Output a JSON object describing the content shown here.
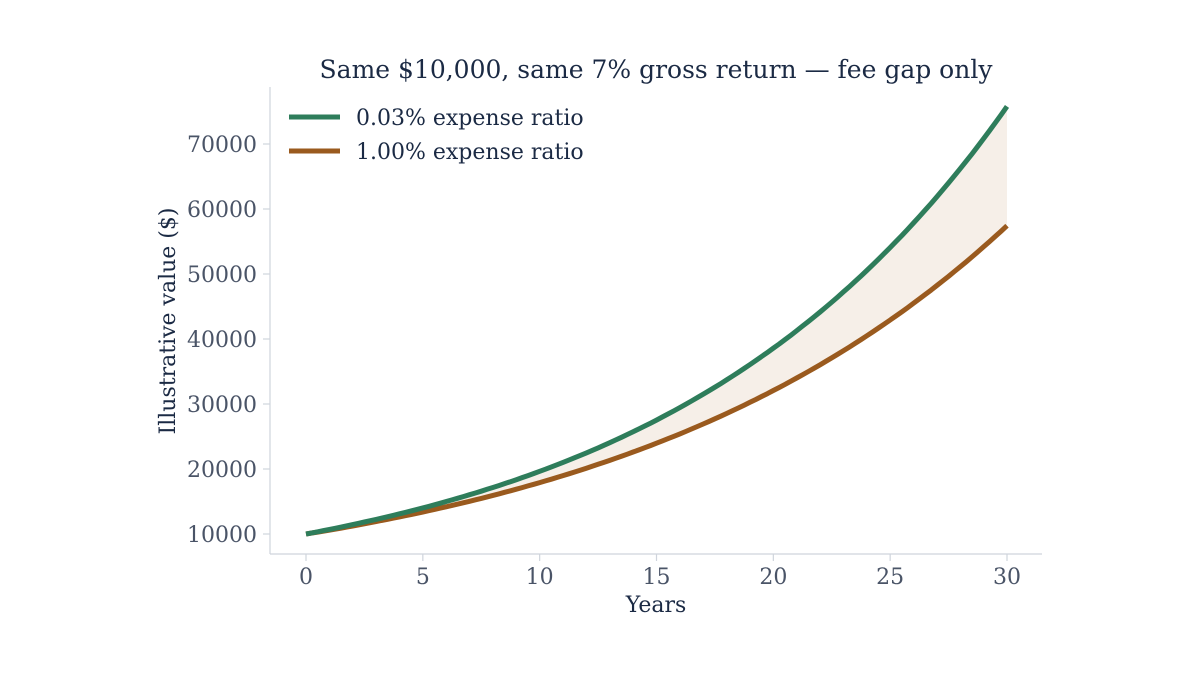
{
  "chart_data": {
    "type": "line",
    "title": "Same $10,000, same 7% gross return — fee gap only",
    "xlabel": "Years",
    "ylabel": "Illustrative value ($)",
    "xlim": [
      0,
      30
    ],
    "ylim": [
      10000,
      75000
    ],
    "x_ticks": [
      "0",
      "5",
      "10",
      "15",
      "20",
      "25",
      "30"
    ],
    "y_ticks": [
      "10000",
      "20000",
      "30000",
      "40000",
      "50000",
      "60000",
      "70000"
    ],
    "grid": false,
    "legend_position": "top-left",
    "fill_between": {
      "color": "#f6efe8",
      "between": [
        0,
        1
      ]
    },
    "x": [
      0,
      5,
      10,
      15,
      20,
      25,
      30
    ],
    "series": [
      {
        "name": "0.03% expense ratio",
        "color": "#2e7d5b",
        "values": [
          10000,
          14015,
          19642,
          27528,
          38581,
          54072,
          75782
        ]
      },
      {
        "name": "1.00% expense ratio",
        "color": "#9a5a1e",
        "values": [
          10000,
          13382,
          17908,
          23966,
          32071,
          42919,
          57435
        ]
      }
    ]
  }
}
